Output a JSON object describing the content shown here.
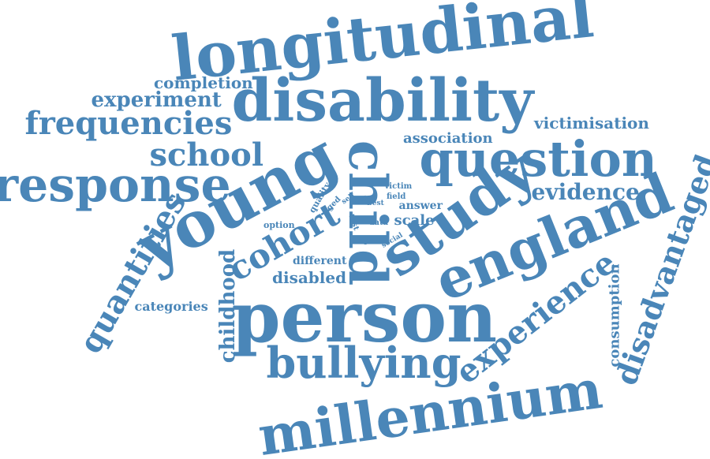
{
  "style": {
    "word_color": "#4a86b8",
    "background": "#ffffff"
  },
  "words": [
    {
      "id": "longitudinal",
      "text": "longitudinal"
    },
    {
      "id": "disability",
      "text": "disability"
    },
    {
      "id": "completion",
      "text": "completion"
    },
    {
      "id": "experiment",
      "text": "experiment"
    },
    {
      "id": "frequencies",
      "text": "frequencies"
    },
    {
      "id": "victimisation",
      "text": "victimisation"
    },
    {
      "id": "association",
      "text": "association"
    },
    {
      "id": "question",
      "text": "question"
    },
    {
      "id": "school",
      "text": "school"
    },
    {
      "id": "response",
      "text": "response"
    },
    {
      "id": "evidence",
      "text": "evidence"
    },
    {
      "id": "young",
      "text": "young"
    },
    {
      "id": "child",
      "text": "child"
    },
    {
      "id": "study",
      "text": "study"
    },
    {
      "id": "england",
      "text": "england"
    },
    {
      "id": "disadvantaged",
      "text": "disadvantaged"
    },
    {
      "id": "quantities",
      "text": "quantities"
    },
    {
      "id": "cohort",
      "text": "cohort"
    },
    {
      "id": "quality",
      "text": "quality"
    },
    {
      "id": "aged",
      "text": "aged"
    },
    {
      "id": "self",
      "text": "self"
    },
    {
      "id": "way",
      "text": "way"
    },
    {
      "id": "best",
      "text": "best"
    },
    {
      "id": "victim",
      "text": "victim"
    },
    {
      "id": "field",
      "text": "field"
    },
    {
      "id": "answer",
      "text": "answer"
    },
    {
      "id": "test",
      "text": "test"
    },
    {
      "id": "data",
      "text": "data"
    },
    {
      "id": "scale",
      "text": "scale"
    },
    {
      "id": "option",
      "text": "option"
    },
    {
      "id": "open",
      "text": "open"
    },
    {
      "id": "social",
      "text": "social"
    },
    {
      "id": "different",
      "text": "different"
    },
    {
      "id": "disabled",
      "text": "disabled"
    },
    {
      "id": "categories",
      "text": "categories"
    },
    {
      "id": "childhood",
      "text": "childhood"
    },
    {
      "id": "person",
      "text": "person"
    },
    {
      "id": "experience",
      "text": "experience"
    },
    {
      "id": "consumption",
      "text": "consumption"
    },
    {
      "id": "bullying",
      "text": "bullying"
    },
    {
      "id": "millennium",
      "text": "millennium"
    }
  ]
}
